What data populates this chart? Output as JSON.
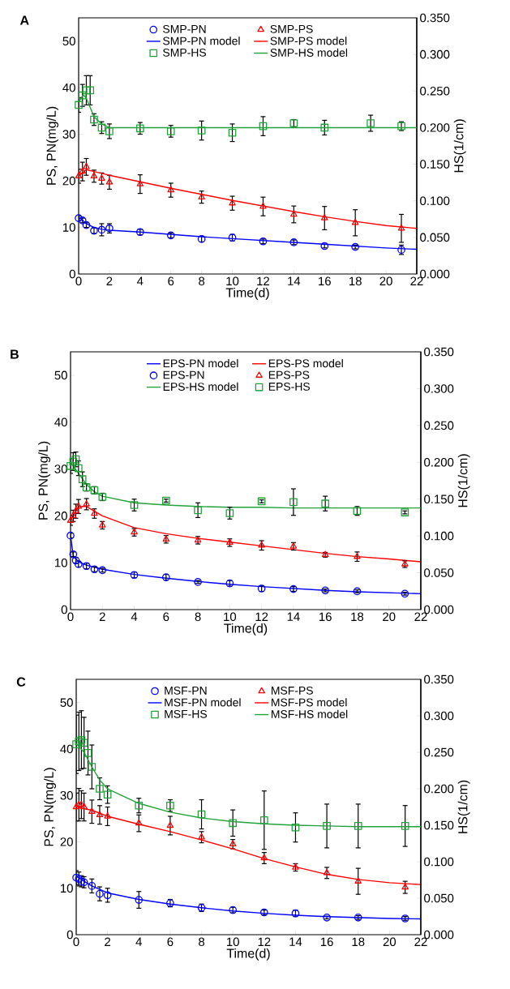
{
  "chart_data": [
    {
      "type": "line",
      "title": "A",
      "xlabel": "Time(d)",
      "ylabel": "PS, PN(mg/L)",
      "y2label": "HS(1/cm)",
      "legend": "top",
      "xlim": [
        0,
        22
      ],
      "xticks": [
        0,
        2,
        4,
        6,
        8,
        10,
        12,
        14,
        16,
        18,
        20,
        22
      ],
      "ylim": [
        0,
        55
      ],
      "yticks": [
        0,
        10,
        20,
        30,
        40,
        50
      ],
      "y2lim": [
        0,
        0.35
      ],
      "y2ticks": [
        {
          "value": 0,
          "label": "0.000"
        },
        {
          "value": 0.05,
          "label": "0.050"
        },
        {
          "value": 0.1,
          "label": "0.100"
        },
        {
          "value": 0.15,
          "label": "0.150"
        },
        {
          "value": 0.2,
          "label": "0.200"
        },
        {
          "value": 0.25,
          "label": "0.250"
        },
        {
          "value": 0.3,
          "label": "0.300"
        },
        {
          "value": 0.35,
          "label": "0.350"
        }
      ],
      "series": [
        {
          "name": "SMP-PN",
          "type": "scatter",
          "marker": "circle",
          "color": "#0000ff",
          "x": [
            0,
            0.25,
            0.5,
            1,
            1.5,
            2,
            4,
            6,
            8,
            10,
            12,
            14,
            16,
            18,
            21
          ],
          "values": [
            12,
            11.5,
            10.5,
            9.3,
            9.5,
            9.8,
            9.0,
            8.3,
            7.5,
            7.8,
            7.0,
            6.8,
            6.0,
            5.8,
            5.2
          ],
          "errors": [
            0.5,
            0.5,
            0.5,
            0.6,
            1.3,
            1.0,
            0.6,
            0.5,
            0.6,
            0.7,
            0.5,
            0.5,
            0.4,
            0.4,
            1.0
          ]
        },
        {
          "name": "SMP-PS",
          "type": "scatter",
          "marker": "triangle",
          "color": "#ff0000",
          "x": [
            0,
            0.25,
            0.5,
            1,
            1.5,
            2,
            4,
            6,
            8,
            10,
            12,
            14,
            16,
            18,
            21
          ],
          "values": [
            21,
            22,
            23,
            21,
            20.5,
            19.7,
            19.3,
            18,
            16.5,
            15.2,
            14.5,
            12.8,
            12,
            11,
            9.8
          ],
          "errors": [
            1.5,
            2.0,
            1.8,
            1.3,
            1.2,
            1.5,
            2.0,
            1.5,
            1.3,
            1.5,
            2.0,
            1.8,
            2.5,
            2.8,
            3.0
          ]
        },
        {
          "name": "SMP-PN model",
          "marker": "none",
          "color": "#0000ff",
          "x": [
            0,
            0.5,
            1,
            1.5,
            2,
            4,
            6,
            8,
            10,
            12,
            14,
            16,
            18,
            20,
            22
          ],
          "values": [
            12.3,
            10.8,
            10.0,
            9.6,
            9.4,
            9.0,
            8.5,
            8.0,
            7.6,
            7.2,
            6.8,
            6.4,
            6.0,
            5.6,
            5.3
          ]
        },
        {
          "name": "SMP-PS model",
          "marker": "none",
          "color": "#ff0000",
          "x": [
            0,
            0.5,
            1,
            2,
            4,
            6,
            8,
            10,
            12,
            14,
            16,
            18,
            20,
            22
          ],
          "values": [
            21,
            22.4,
            22,
            21.2,
            19.8,
            18.4,
            17.1,
            15.8,
            14.6,
            13.4,
            12.3,
            11.3,
            10.4,
            9.8
          ]
        },
        {
          "name": "SMP-HS",
          "type": "scatter",
          "marker": "square",
          "color": "#22a33a",
          "axis": "y2",
          "x": [
            0,
            0.25,
            0.5,
            0.75,
            1,
            1.5,
            2,
            4,
            6,
            8,
            10,
            12,
            14,
            16,
            19,
            21
          ],
          "values": [
            0.231,
            0.244,
            0.251,
            0.251,
            0.211,
            0.2,
            0.195,
            0.199,
            0.195,
            0.196,
            0.193,
            0.202,
            0.206,
            0.2,
            0.206,
            0.202
          ],
          "errors": [
            0.01,
            0.015,
            0.02,
            0.02,
            0.008,
            0.008,
            0.01,
            0.008,
            0.008,
            0.013,
            0.012,
            0.013,
            0.005,
            0.01,
            0.011,
            0.006
          ]
        },
        {
          "name": "SMP-HS model",
          "marker": "none",
          "color": "#22a33a",
          "axis": "y2",
          "x": [
            0,
            0.3,
            0.5,
            1,
            1.5,
            2,
            4,
            22
          ],
          "values": [
            0.235,
            0.245,
            0.24,
            0.215,
            0.205,
            0.2,
            0.2,
            0.2
          ]
        }
      ]
    },
    {
      "type": "line",
      "title": "B",
      "xlabel": "Time(d)",
      "ylabel": "PS, PN(mg/L)",
      "y2label": "HS(1/cm)",
      "legend": "top",
      "xlim": [
        0,
        22
      ],
      "xticks": [
        0,
        2,
        4,
        6,
        8,
        10,
        12,
        14,
        16,
        18,
        20,
        22
      ],
      "ylim": [
        0,
        55
      ],
      "yticks": [
        0,
        10,
        20,
        30,
        40,
        50
      ],
      "y2lim": [
        0,
        0.35
      ],
      "y2ticks": [
        {
          "value": 0,
          "label": "0.000"
        },
        {
          "value": 0.05,
          "label": "0.050"
        },
        {
          "value": 0.1,
          "label": "0.100"
        },
        {
          "value": 0.15,
          "label": "0.150"
        },
        {
          "value": 0.2,
          "label": "0.200"
        },
        {
          "value": 0.25,
          "label": "0.250"
        },
        {
          "value": 0.3,
          "label": "0.300"
        },
        {
          "value": 0.35,
          "label": "0.350"
        }
      ],
      "series": [
        {
          "name": "EPS-PN model",
          "marker": "none",
          "color": "#0000ff",
          "x": [
            0,
            0.17,
            0.5,
            1,
            2,
            4,
            6,
            8,
            10,
            12,
            14,
            16,
            18,
            20,
            22
          ],
          "values": [
            15.8,
            11.5,
            10.2,
            9.5,
            8.6,
            7.5,
            6.7,
            6.0,
            5.4,
            4.9,
            4.5,
            4.1,
            3.8,
            3.6,
            3.4
          ]
        },
        {
          "name": "EPS-PS model",
          "marker": "none",
          "color": "#ff0000",
          "x": [
            0,
            0.5,
            1,
            1.5,
            2,
            4,
            6,
            8,
            10,
            12,
            14,
            16,
            18,
            20,
            22
          ],
          "values": [
            19,
            22,
            22,
            21,
            20,
            17.5,
            16.2,
            15.2,
            14.4,
            13.6,
            12.8,
            12.0,
            11.3,
            10.8,
            10.2
          ]
        },
        {
          "name": "EPS-PN",
          "type": "scatter",
          "marker": "circle",
          "color": "#0000ff",
          "x": [
            0,
            0.17,
            0.33,
            0.5,
            1,
            1.5,
            2,
            4,
            6,
            8,
            10,
            12,
            14,
            16,
            18,
            21
          ],
          "values": [
            15.8,
            11.8,
            10.5,
            9.7,
            9.3,
            8.6,
            8.4,
            7.4,
            6.9,
            5.9,
            5.6,
            4.5,
            4.4,
            4.1,
            3.9,
            3.4
          ],
          "errors": [
            0.5,
            0.5,
            0.6,
            0.6,
            0.6,
            0.5,
            0.4,
            0.6,
            0.6,
            0.3,
            0.6,
            0.6,
            0.5,
            0.3,
            0.3,
            0.3
          ]
        },
        {
          "name": "EPS-PS",
          "type": "scatter",
          "marker": "triangle",
          "color": "#ff0000",
          "x": [
            0,
            0.17,
            0.33,
            0.5,
            1,
            1.5,
            2,
            4,
            6,
            8,
            10,
            12,
            14,
            16,
            18,
            21
          ],
          "values": [
            19,
            20,
            21,
            22,
            22.5,
            20.5,
            18,
            16.5,
            15,
            14.8,
            14.3,
            13.7,
            13.5,
            11.7,
            11.3,
            9.7
          ],
          "errors": [
            1.0,
            1.2,
            1.5,
            1.5,
            1.2,
            1.0,
            0.8,
            0.8,
            0.8,
            0.8,
            0.8,
            1.0,
            0.8,
            0.5,
            1.0,
            0.7
          ]
        },
        {
          "name": "EPS-HS model",
          "marker": "none",
          "color": "#22a33a",
          "axis": "y2",
          "x": [
            0,
            0.5,
            1,
            1.5,
            2,
            4,
            6,
            8,
            10,
            12,
            14,
            16,
            18,
            20,
            22
          ],
          "values": [
            0.2,
            0.185,
            0.17,
            0.16,
            0.154,
            0.145,
            0.142,
            0.14,
            0.139,
            0.139,
            0.138,
            0.138,
            0.138,
            0.138,
            0.138
          ]
        },
        {
          "name": "EPS-HS",
          "type": "scatter",
          "marker": "square",
          "color": "#22a33a",
          "axis": "y2",
          "x": [
            0,
            0.17,
            0.33,
            0.5,
            0.75,
            1,
            1.5,
            2,
            4,
            6,
            8,
            10,
            12,
            14,
            16,
            18,
            21
          ],
          "values": [
            0.195,
            0.201,
            0.204,
            0.192,
            0.177,
            0.166,
            0.162,
            0.153,
            0.142,
            0.148,
            0.135,
            0.131,
            0.147,
            0.146,
            0.144,
            0.134,
            0.132
          ],
          "errors": [
            0.01,
            0.012,
            0.01,
            0.01,
            0.01,
            0.005,
            0.005,
            0.005,
            0.008,
            0.002,
            0.01,
            0.008,
            0.002,
            0.018,
            0.01,
            0.006,
            0.002
          ]
        }
      ]
    },
    {
      "type": "line",
      "title": "C",
      "xlabel": "Time(d)",
      "ylabel": "PS, PN(mg/L)",
      "y2label": "HS(1/cm)",
      "legend": "top",
      "xlim": [
        0,
        22
      ],
      "xticks": [
        0,
        2,
        4,
        6,
        8,
        10,
        12,
        14,
        16,
        18,
        20,
        22
      ],
      "ylim": [
        0,
        55
      ],
      "yticks": [
        0,
        10,
        20,
        30,
        40,
        50
      ],
      "y2lim": [
        0,
        0.35
      ],
      "y2ticks": [
        {
          "value": 0,
          "label": "0.000"
        },
        {
          "value": 0.05,
          "label": "0.050"
        },
        {
          "value": 0.1,
          "label": "0.100"
        },
        {
          "value": 0.15,
          "label": "0.150"
        },
        {
          "value": 0.2,
          "label": "0.200"
        },
        {
          "value": 0.25,
          "label": "0.250"
        },
        {
          "value": 0.3,
          "label": "0.300"
        },
        {
          "value": 0.35,
          "label": "0.350"
        }
      ],
      "series": [
        {
          "name": "MSF-PN",
          "type": "scatter",
          "marker": "circle",
          "color": "#0000ff",
          "x": [
            0,
            0.17,
            0.33,
            0.5,
            1,
            1.5,
            2,
            4,
            6,
            8,
            10,
            12,
            14,
            16,
            18,
            21
          ],
          "values": [
            12.3,
            12,
            11.5,
            11.3,
            10.5,
            8.8,
            8.5,
            7.5,
            6.8,
            5.8,
            5.3,
            4.8,
            4.6,
            3.7,
            3.7,
            3.5
          ],
          "errors": [
            1.5,
            1.5,
            1.2,
            1.2,
            1.5,
            1.5,
            1.5,
            1.8,
            0.8,
            0.8,
            0.6,
            0.5,
            0.7,
            0.3,
            0.4,
            0.4
          ]
        },
        {
          "name": "MSF-PS",
          "type": "scatter",
          "marker": "triangle",
          "color": "#ff0000",
          "x": [
            0,
            0.17,
            0.33,
            0.5,
            1,
            1.5,
            2,
            4,
            6,
            8,
            10,
            12,
            14,
            16,
            18,
            21
          ],
          "values": [
            27.5,
            28,
            28,
            27.5,
            26.5,
            25.8,
            25.5,
            24,
            23.5,
            21,
            19.5,
            16.5,
            14.5,
            13.3,
            11.5,
            10.2
          ],
          "errors": [
            3.0,
            3.5,
            3.0,
            3.0,
            2.5,
            2.0,
            2.0,
            1.8,
            2.0,
            1.2,
            1.0,
            1.2,
            0.8,
            1.2,
            2.8,
            1.3
          ]
        },
        {
          "name": "MSF-PN model",
          "marker": "none",
          "color": "#0000ff",
          "x": [
            0,
            0.5,
            1,
            2,
            4,
            6,
            8,
            10,
            12,
            14,
            16,
            18,
            20,
            22
          ],
          "values": [
            12.6,
            11.5,
            10.5,
            9.0,
            7.6,
            6.6,
            5.8,
            5.1,
            4.6,
            4.2,
            3.9,
            3.7,
            3.5,
            3.4
          ]
        },
        {
          "name": "MSF-PS model",
          "marker": "none",
          "color": "#ff0000",
          "x": [
            0,
            1,
            2,
            4,
            6,
            8,
            10,
            12,
            14,
            16,
            18,
            20,
            22
          ],
          "values": [
            27.5,
            26.8,
            25.5,
            23.8,
            22.2,
            20.4,
            18.5,
            16.4,
            14.6,
            13.0,
            11.9,
            11.2,
            10.8
          ]
        },
        {
          "name": "MSF-HS",
          "type": "scatter",
          "marker": "square",
          "color": "#22a33a",
          "axis": "y2",
          "x": [
            0,
            0.17,
            0.33,
            0.5,
            0.75,
            1,
            1.5,
            2,
            4,
            6,
            8,
            10,
            12,
            14,
            16,
            18,
            21
          ],
          "values": [
            0.261,
            0.265,
            0.267,
            0.263,
            0.249,
            0.23,
            0.2,
            0.192,
            0.177,
            0.177,
            0.165,
            0.153,
            0.157,
            0.147,
            0.149,
            0.149,
            0.149
          ],
          "errors": [
            0.04,
            0.04,
            0.04,
            0.035,
            0.03,
            0.03,
            0.015,
            0.012,
            0.01,
            0.008,
            0.02,
            0.018,
            0.04,
            0.02,
            0.03,
            0.03,
            0.028
          ]
        },
        {
          "name": "MSF-HS model",
          "marker": "none",
          "color": "#22a33a",
          "axis": "y2",
          "x": [
            0,
            0.5,
            1,
            1.5,
            2,
            4,
            6,
            8,
            10,
            12,
            14,
            16,
            18,
            20,
            22
          ],
          "values": [
            0.262,
            0.25,
            0.23,
            0.212,
            0.2,
            0.18,
            0.168,
            0.16,
            0.155,
            0.152,
            0.15,
            0.149,
            0.148,
            0.148,
            0.148
          ]
        }
      ]
    }
  ]
}
